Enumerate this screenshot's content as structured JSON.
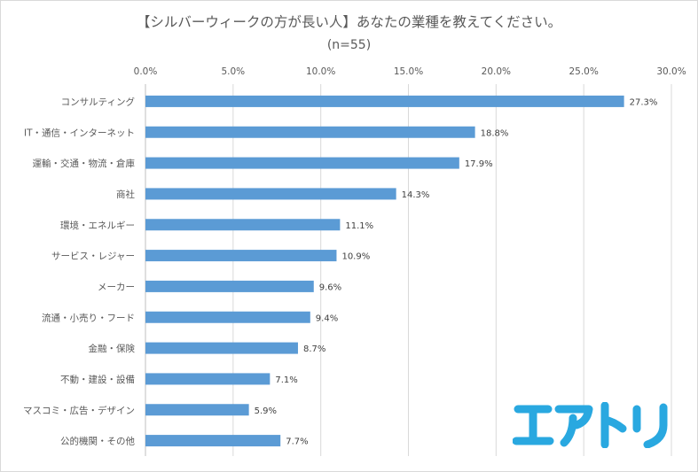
{
  "chart_data": {
    "type": "bar",
    "orientation": "horizontal",
    "title": "【シルバーウィークの方が長い人】あなたの業種を教えてください。",
    "subtitle": "(n=55)",
    "categories": [
      "コンサルティング",
      "IT・通信・インターネット",
      "運輸・交通・物流・倉庫",
      "商社",
      "環境・エネルギー",
      "サービス・レジャー",
      "メーカー",
      "流通・小売り・フード",
      "金融・保険",
      "不動・建設・設備",
      "マスコミ・広告・デザイン",
      "公的機関・その他"
    ],
    "values": [
      27.3,
      18.8,
      17.9,
      14.3,
      11.1,
      10.9,
      9.6,
      9.4,
      8.7,
      7.1,
      5.9,
      7.7
    ],
    "value_labels": [
      "27.3%",
      "18.8%",
      "17.9%",
      "14.3%",
      "11.1%",
      "10.9%",
      "9.6%",
      "9.4%",
      "8.7%",
      "7.1%",
      "5.9%",
      "7.7%"
    ],
    "xlim": [
      0,
      30
    ],
    "xticks": [
      "0.0%",
      "5.0%",
      "10.0%",
      "15.0%",
      "20.0%",
      "25.0%",
      "30.0%"
    ],
    "xaxis_position": "top",
    "grid": true,
    "bar_color": "#5b9bd5",
    "xlabel": "",
    "ylabel": ""
  },
  "logo": {
    "text": "エアトリ",
    "color": "#29a8e0"
  }
}
